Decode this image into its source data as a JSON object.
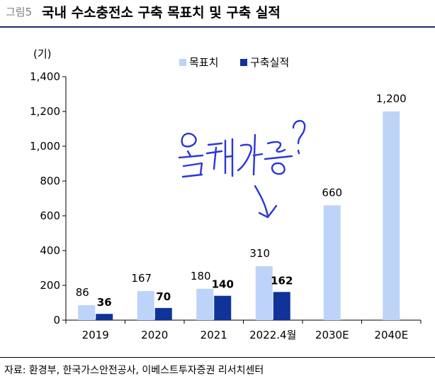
{
  "figure": {
    "label": "그림5",
    "title": "국내 수소충전소 구축 목표치 및 구축 실적"
  },
  "source": "자료: 환경부, 한국가스안전공사, 이베스트투자증권 리서치센터",
  "annotation": {
    "handwritten_text": "올해 가능?"
  },
  "colors": {
    "target": "#bdd3f7",
    "actual": "#10339a",
    "header_rule": "#1f2d6b",
    "annotation": "#2b36d8"
  },
  "chart_data": {
    "type": "bar",
    "unit_label": "(기)",
    "categories": [
      "2019",
      "2020",
      "2021",
      "2022.4월",
      "2030E",
      "2040E"
    ],
    "series": [
      {
        "name": "목표치",
        "values": [
          86,
          167,
          180,
          310,
          660,
          1200
        ],
        "labels": [
          "86",
          "167",
          "180",
          "310",
          "660",
          "1,200"
        ]
      },
      {
        "name": "구축실적",
        "values": [
          36,
          70,
          140,
          162,
          null,
          null
        ],
        "labels": [
          "36",
          "70",
          "140",
          "162",
          "",
          ""
        ]
      }
    ],
    "ylim": [
      0,
      1400
    ],
    "yticks": [
      0,
      200,
      400,
      600,
      800,
      1000,
      1200,
      1400
    ],
    "ytick_labels": [
      "0",
      "200",
      "400",
      "600",
      "800",
      "1,000",
      "1,200",
      "1,400"
    ],
    "grid": false,
    "legend_position": "top"
  }
}
